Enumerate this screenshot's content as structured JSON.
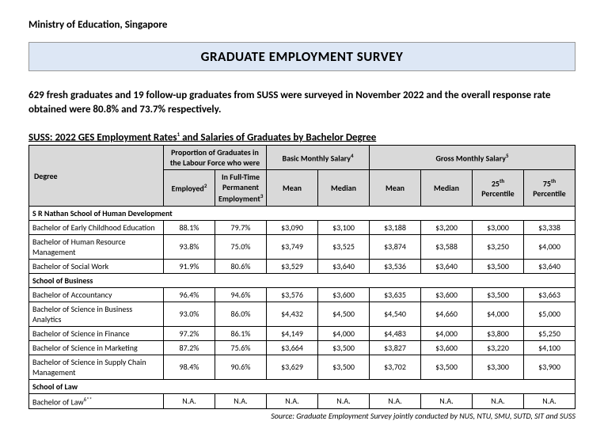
{
  "org": "Ministry of Education, Singapore",
  "title": "GRADUATE EMPLOYMENT SURVEY",
  "intro": "629 fresh graduates and 19 follow-up graduates from SUSS were surveyed in November 2022 and the overall response rate obtained were 80.8% and 73.7% respectively.",
  "caption_prefix": "SUSS: 2022 GES Employment Rates",
  "caption_suffix": " and Salaries of Graduates by Bachelor Degree",
  "headers": {
    "degree": "Degree",
    "proportion": "Proportion of Graduates in the Labour Force who were",
    "basic": "Basic Monthly Salary",
    "gross": "Gross Monthly Salary",
    "employed": "Employed",
    "fulltime": "In Full-Time Permanent Employment",
    "mean": "Mean",
    "median": "Median",
    "p25_pre": "25",
    "p25_suf": "Percentile",
    "p75_pre": "75",
    "p75_suf": "Percentile"
  },
  "sections": [
    {
      "name": "S R Nathan School of Human Development",
      "rows": [
        {
          "deg": "Bachelor of Early Childhood Education",
          "emp": "88.1%",
          "ft": "79.7%",
          "bmean": "$3,090",
          "bmed": "$3,100",
          "gmean": "$3,188",
          "gmed": "$3,200",
          "p25": "$3,000",
          "p75": "$3,338"
        },
        {
          "deg": "Bachelor of Human Resource Management",
          "emp": "93.8%",
          "ft": "75.0%",
          "bmean": "$3,749",
          "bmed": "$3,525",
          "gmean": "$3,874",
          "gmed": "$3,588",
          "p25": "$3,250",
          "p75": "$4,000"
        },
        {
          "deg": "Bachelor of Social Work",
          "emp": "91.9%",
          "ft": "80.6%",
          "bmean": "$3,529",
          "bmed": "$3,640",
          "gmean": "$3,536",
          "gmed": "$3,640",
          "p25": "$3,500",
          "p75": "$3,640"
        }
      ]
    },
    {
      "name": "School of Business",
      "rows": [
        {
          "deg": "Bachelor of Accountancy",
          "emp": "96.4%",
          "ft": "94.6%",
          "bmean": "$3,576",
          "bmed": "$3,600",
          "gmean": "$3,635",
          "gmed": "$3,600",
          "p25": "$3,500",
          "p75": "$3,663"
        },
        {
          "deg": "Bachelor of Science in Business Analytics",
          "emp": "93.0%",
          "ft": "86.0%",
          "bmean": "$4,432",
          "bmed": "$4,500",
          "gmean": "$4,540",
          "gmed": "$4,660",
          "p25": "$4,000",
          "p75": "$5,000"
        },
        {
          "deg": "Bachelor of Science in Finance",
          "emp": "97.2%",
          "ft": "86.1%",
          "bmean": "$4,149",
          "bmed": "$4,000",
          "gmean": "$4,483",
          "gmed": "$4,000",
          "p25": "$3,800",
          "p75": "$5,250"
        },
        {
          "deg": "Bachelor of Science in Marketing",
          "emp": "87.2%",
          "ft": "75.6%",
          "bmean": "$3,664",
          "bmed": "$3,500",
          "gmean": "$3,827",
          "gmed": "$3,600",
          "p25": "$3,220",
          "p75": "$4,100"
        },
        {
          "deg": "Bachelor of Science in Supply Chain Management",
          "emp": "98.4%",
          "ft": "90.6%",
          "bmean": "$3,629",
          "bmed": "$3,500",
          "gmean": "$3,702",
          "gmed": "$3,500",
          "p25": "$3,300",
          "p75": "$3,900"
        }
      ]
    },
    {
      "name": "School of Law",
      "rows": [
        {
          "deg": "Bachelor of Law",
          "sup": "6**",
          "emp": "N.A.",
          "ft": "N.A.",
          "bmean": "N.A.",
          "bmed": "N.A.",
          "gmean": "N.A.",
          "gmed": "N.A.",
          "p25": "N.A.",
          "p75": "N.A."
        }
      ]
    }
  ],
  "source": "Source: Graduate Employment Survey jointly conducted by NUS, NTU, SMU, SUTD, SIT and SUSS"
}
